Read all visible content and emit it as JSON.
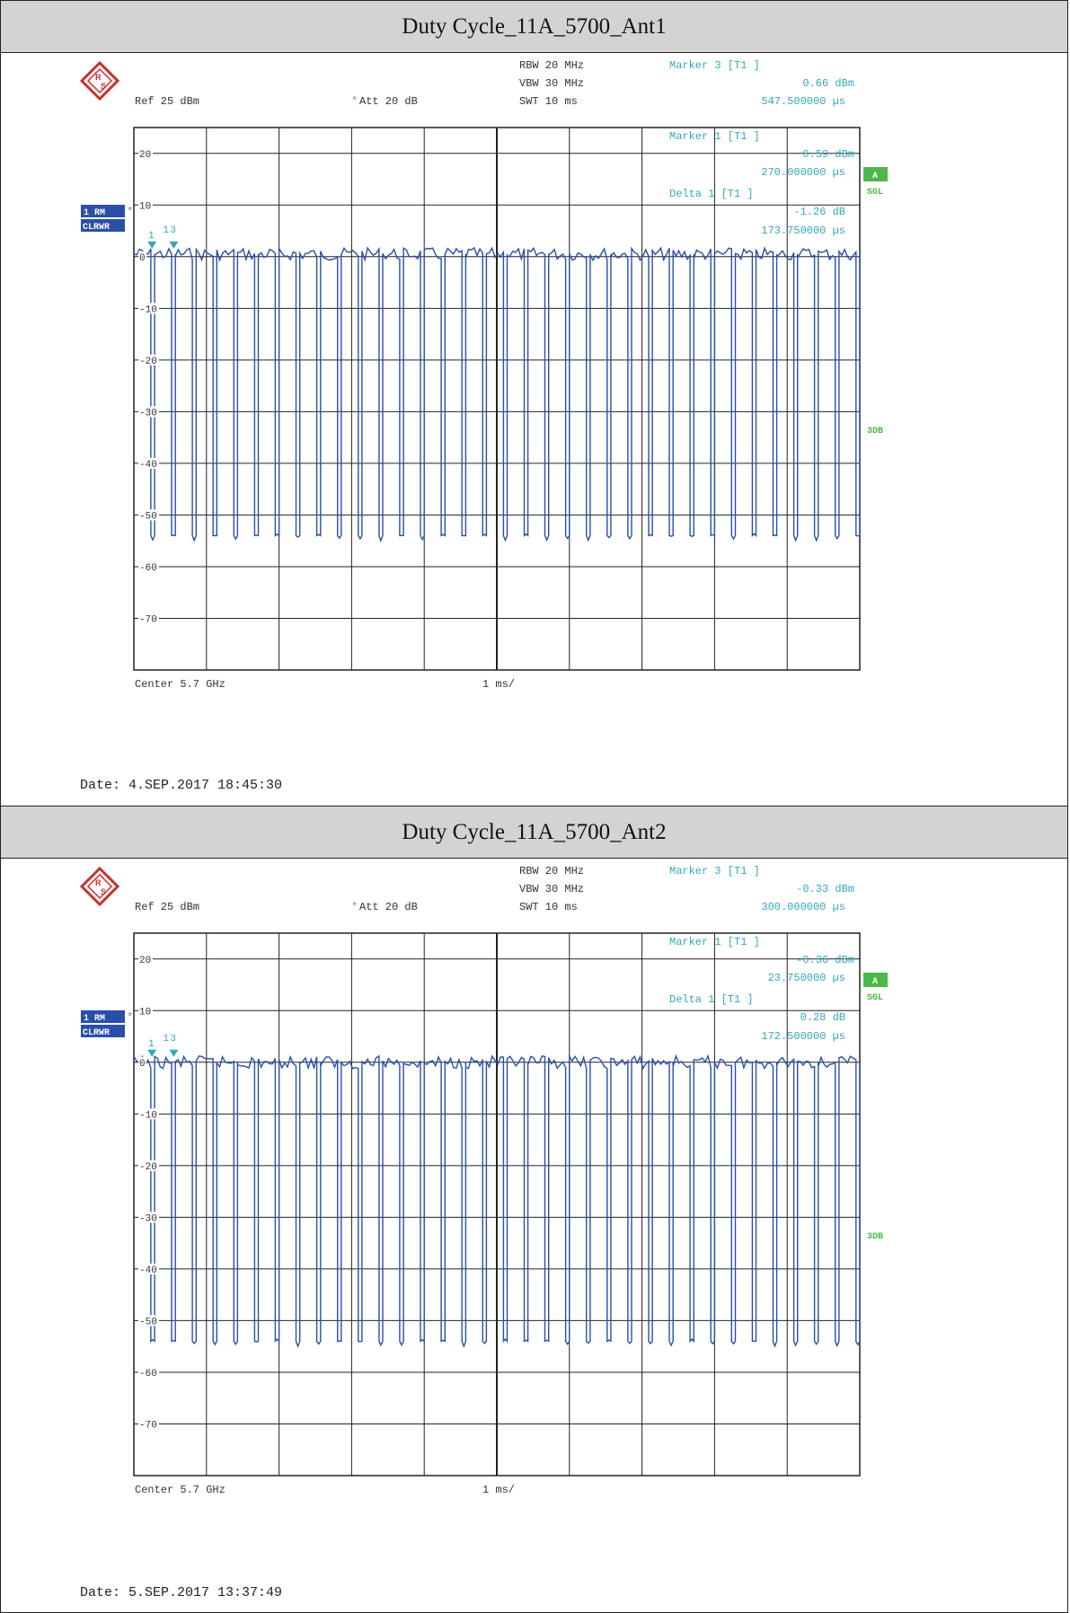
{
  "colors": {
    "trace": "#2a4fa8",
    "marker": "#35a8b8",
    "grid": "#222222",
    "label": "#333333",
    "badge_blue": "#2a4fa8",
    "badge_green": "#4cb84a"
  },
  "instrument": {
    "logo": "R&S"
  },
  "chart_data": [
    {
      "type": "line",
      "title": "Duty Cycle_11A_5700_Ant1",
      "settings": {
        "rbw": "RBW 20 MHz",
        "vbw": "VBW 30 MHz",
        "swt": "SWT 10 ms",
        "ref": "Ref  25 dBm",
        "att": "Att  20 dB",
        "att_star": "*"
      },
      "markers": {
        "m3_label": "Marker 3 [T1 ]",
        "m3_value": "0.66 dBm",
        "m3_time": "547.500000 µs",
        "m1_label": "Marker 1 [T1 ]",
        "m1_value": "0.59 dBm",
        "m1_time": "270.000000 µs",
        "d1_label": "Delta 1 [T1 ]",
        "d1_value": "-1.26 dB",
        "d1_time": "173.750000 µs",
        "trace_labels": [
          "1",
          "1",
          "3"
        ]
      },
      "badges": {
        "trace": "1 RM",
        "trace_star": "*",
        "mode": "CLRWR",
        "a": "A",
        "sgl": "SGL",
        "db3": "3DB"
      },
      "y_axis": {
        "ylim": [
          -80,
          25
        ],
        "ticks": [
          20,
          10,
          0,
          -10,
          -20,
          -30,
          -40,
          -50,
          -60,
          -70
        ],
        "tick_labels": [
          "20",
          "10",
          "0",
          "-10",
          "-20",
          "-30",
          "-40",
          "-50",
          "-60",
          "-70"
        ]
      },
      "x_axis": {
        "center": "Center 5.7 GHz",
        "span": "1 ms/",
        "xlim": [
          0,
          10
        ],
        "unit": "ms"
      },
      "trace": {
        "high_level": 0.5,
        "low_level": -54,
        "bursts": 35,
        "period_ms": 0.2857,
        "duty_cycle": 0.82
      },
      "date": "Date: 4.SEP.2017  18:45:30"
    },
    {
      "type": "line",
      "title": "Duty Cycle_11A_5700_Ant2",
      "settings": {
        "rbw": "RBW 20 MHz",
        "vbw": "VBW 30 MHz",
        "swt": "SWT 10 ms",
        "ref": "Ref  25 dBm",
        "att": "Att  20 dB",
        "att_star": "*"
      },
      "markers": {
        "m3_label": "Marker 3 [T1 ]",
        "m3_value": "-0.33 dBm",
        "m3_time": "300.000000 µs",
        "m1_label": "Marker 1 [T1 ]",
        "m1_value": "-0.36 dBm",
        "m1_time": "23.750000 µs",
        "d1_label": "Delta 1 [T1 ]",
        "d1_value": "0.28 dB",
        "d1_time": "172.500000 µs",
        "trace_labels": [
          "1",
          "1",
          "3"
        ]
      },
      "badges": {
        "trace": "1 RM",
        "trace_star": "*",
        "mode": "CLRWR",
        "a": "A",
        "sgl": "SGL",
        "db3": "3DB"
      },
      "y_axis": {
        "ylim": [
          -80,
          25
        ],
        "ticks": [
          20,
          10,
          0,
          -10,
          -20,
          -30,
          -40,
          -50,
          -60,
          -70
        ],
        "tick_labels": [
          "20",
          "10",
          "0",
          "-10",
          "-20",
          "-30",
          "-40",
          "-50",
          "-60",
          "-70"
        ]
      },
      "x_axis": {
        "center": "Center 5.7 GHz",
        "span": "1 ms/",
        "xlim": [
          0,
          10
        ],
        "unit": "ms"
      },
      "trace": {
        "high_level": 0.0,
        "low_level": -54,
        "bursts": 35,
        "period_ms": 0.2857,
        "duty_cycle": 0.82
      },
      "date": "Date: 5.SEP.2017  13:37:49"
    }
  ]
}
